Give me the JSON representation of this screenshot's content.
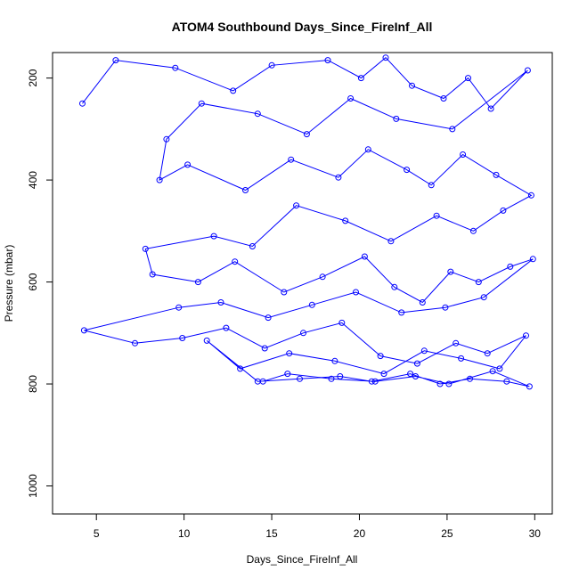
{
  "chart_data": {
    "type": "line",
    "title": "ATOM4 Southbound Days_Since_FireInf_All",
    "xlabel": "Days_Since_FireInf_All",
    "ylabel": "Pressure (mbar)",
    "xlim": [
      2.5,
      31
    ],
    "ylim": [
      1055,
      150
    ],
    "y_reversed": true,
    "x_ticks": [
      5,
      10,
      15,
      20,
      25,
      30
    ],
    "y_ticks": [
      200,
      400,
      600,
      800,
      1000
    ],
    "series_color": "#0000ff",
    "marker": "open-circle",
    "grid": false,
    "legend": "none",
    "series": [
      {
        "x": [
          4.2,
          6.1,
          9.5,
          12.8,
          15.0,
          18.2,
          20.1,
          21.5,
          23.0,
          24.8,
          26.2,
          27.5,
          29.6,
          25.3,
          22.1,
          19.5,
          17.0,
          14.2,
          11.0,
          9.0,
          8.6,
          10.2,
          13.5,
          16.1,
          18.8,
          20.5,
          22.7,
          24.1,
          25.9,
          27.8,
          29.8,
          28.2,
          26.5,
          24.4,
          21.8,
          19.2,
          16.4,
          13.9,
          11.7,
          7.8,
          8.2,
          10.8,
          12.9,
          15.7,
          17.9,
          20.3,
          22.0,
          23.6,
          25.2,
          26.8,
          28.6,
          29.9,
          27.1,
          24.9,
          22.4,
          19.8,
          17.3,
          14.8,
          12.1,
          9.7,
          4.3,
          7.2,
          9.9,
          12.4,
          14.6,
          16.8,
          19.0,
          21.2,
          23.3,
          25.5,
          27.3,
          29.5,
          28.0,
          25.8,
          23.7,
          21.4,
          18.6,
          16.0,
          13.2,
          11.3,
          14.2,
          16.6,
          18.9,
          20.7,
          22.9,
          24.6,
          26.3,
          28.4,
          29.7,
          27.6,
          25.1,
          23.2,
          20.9,
          18.4,
          15.9,
          14.5
        ],
        "y": [
          250,
          165,
          180,
          225,
          175,
          165,
          200,
          160,
          215,
          240,
          200,
          260,
          185,
          300,
          280,
          240,
          310,
          270,
          250,
          320,
          400,
          370,
          420,
          360,
          395,
          340,
          380,
          410,
          350,
          390,
          430,
          460,
          500,
          470,
          520,
          480,
          450,
          530,
          510,
          535,
          585,
          600,
          560,
          620,
          590,
          550,
          610,
          640,
          580,
          600,
          570,
          555,
          630,
          650,
          660,
          620,
          645,
          670,
          640,
          650,
          695,
          720,
          710,
          690,
          730,
          700,
          680,
          745,
          760,
          720,
          740,
          705,
          770,
          750,
          735,
          780,
          755,
          740,
          770,
          715,
          795,
          790,
          785,
          795,
          780,
          800,
          790,
          795,
          805,
          775,
          800,
          785,
          795,
          790,
          780,
          795
        ]
      }
    ]
  }
}
